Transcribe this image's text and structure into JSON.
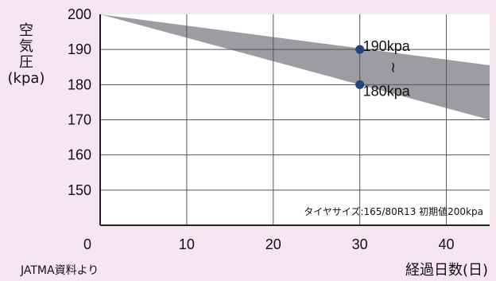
{
  "chart_data": {
    "type": "area",
    "ylabel": "空気圧",
    "ylabel_unit": "(kpa)",
    "xlabel": "経過日数(日)",
    "source": "JATMA資料より",
    "note": "タイヤサイズ:165/80R13 初期値200kpa",
    "x_ticks": [
      0,
      10,
      20,
      30,
      40
    ],
    "y_ticks": [
      150,
      160,
      170,
      180,
      190,
      200
    ],
    "xlim": [
      0,
      45
    ],
    "ylim": [
      140,
      200
    ],
    "grid": true,
    "band": {
      "x": [
        0,
        45
      ],
      "upper": [
        200,
        185.5
      ],
      "lower": [
        200,
        170
      ]
    },
    "points": [
      {
        "x": 30,
        "y": 190,
        "label": "190kpa"
      },
      {
        "x": 30,
        "y": 180,
        "label": "180kpa"
      }
    ],
    "range_mark": "≀",
    "colors": {
      "band": "#9c9ca2",
      "point": "#25407f",
      "plot_bg": "#ffffff",
      "page_bg": "#f6e6ef",
      "grid": "#555555"
    }
  }
}
